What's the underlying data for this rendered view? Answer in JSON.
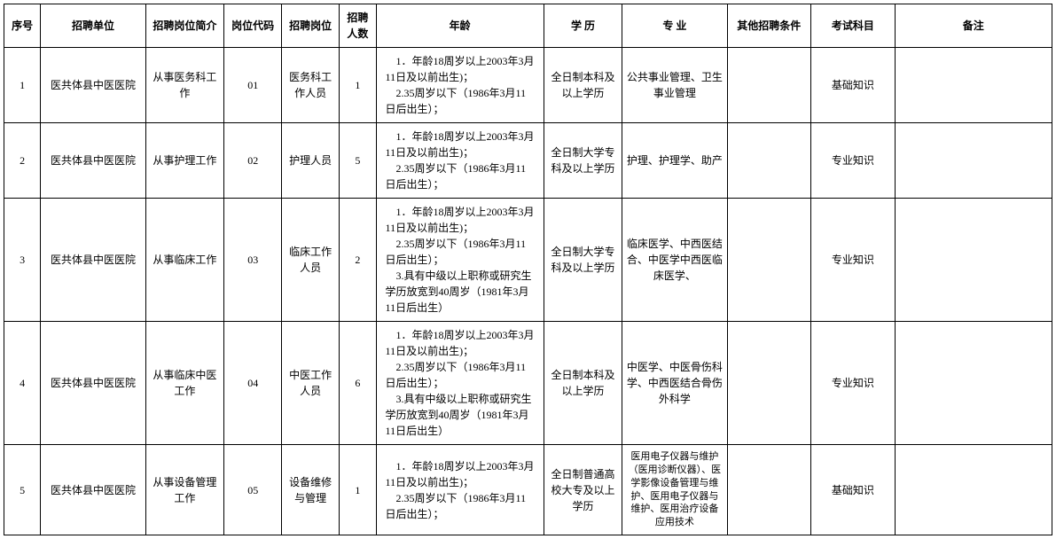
{
  "headers": {
    "seq": "序号",
    "unit": "招聘单位",
    "desc": "招聘岗位简介",
    "code": "岗位代码",
    "pos": "招聘岗位",
    "count": "招聘人数",
    "age": "年龄",
    "edu": "学 历",
    "major": "专 业",
    "other": "其他招聘条件",
    "exam": "考试科目",
    "note": "备注"
  },
  "rows": [
    {
      "seq": "1",
      "unit": "医共体县中医医院",
      "desc": "从事医务科工作",
      "code": "01",
      "pos": "医务科工作人员",
      "count": "1",
      "age": "　1．年龄18周岁以上2003年3月11日及以前出生)；\n　2.35周岁以下（1986年3月11日后出生）；",
      "edu": "全日制本科及以上学历",
      "major": "公共事业管理、卫生事业管理",
      "other": "",
      "exam": "基础知识",
      "note": ""
    },
    {
      "seq": "2",
      "unit": "医共体县中医医院",
      "desc": "从事护理工作",
      "code": "02",
      "pos": "护理人员",
      "count": "5",
      "age": "　1．年龄18周岁以上2003年3月11日及以前出生)；\n　2.35周岁以下（1986年3月11日后出生）；",
      "edu": "全日制大学专科及以上学历",
      "major": "护理、护理学、助产",
      "other": "",
      "exam": "专业知识",
      "note": ""
    },
    {
      "seq": "3",
      "unit": "医共体县中医医院",
      "desc": "从事临床工作",
      "code": "03",
      "pos": "临床工作人员",
      "count": "2",
      "age": "　1．年龄18周岁以上2003年3月11日及以前出生)；\n　2.35周岁以下（1986年3月11日后出生）；\n　3.具有中级以上职称或研究生学历放宽到40周岁（1981年3月11日后出生）",
      "edu": "全日制大学专科及以上学历",
      "major": "临床医学、中西医结合、中医学中西医临床医学、",
      "other": "",
      "exam": "专业知识",
      "note": ""
    },
    {
      "seq": "4",
      "unit": "医共体县中医医院",
      "desc": "从事临床中医工作",
      "code": "04",
      "pos": "中医工作人员",
      "count": "6",
      "age": "　1．年龄18周岁以上2003年3月11日及以前出生)；\n　2.35周岁以下（1986年3月11日后出生）；\n　3.具有中级以上职称或研究生学历放宽到40周岁（1981年3月11日后出生）",
      "edu": "全日制本科及以上学历",
      "major": "中医学、中医骨伤科学、中西医结合骨伤外科学",
      "other": "",
      "exam": "专业知识",
      "note": ""
    },
    {
      "seq": "5",
      "unit": "医共体县中医医院",
      "desc": "从事设备管理工作",
      "code": "05",
      "pos": "设备维修与管理",
      "count": "1",
      "age": "　1．年龄18周岁以上2003年3月11日及以前出生)；\n　2.35周岁以下（1986年3月11日后出生）；",
      "edu": "全日制普通高校大专及以上学历",
      "major": "医用电子仪器与维护（医用诊断仪器）、医学影像设备管理与维护、医用电子仪器与维护、医用治疗设备应用技术",
      "major_small": true,
      "other": "",
      "exam": "基础知识",
      "note": ""
    }
  ]
}
